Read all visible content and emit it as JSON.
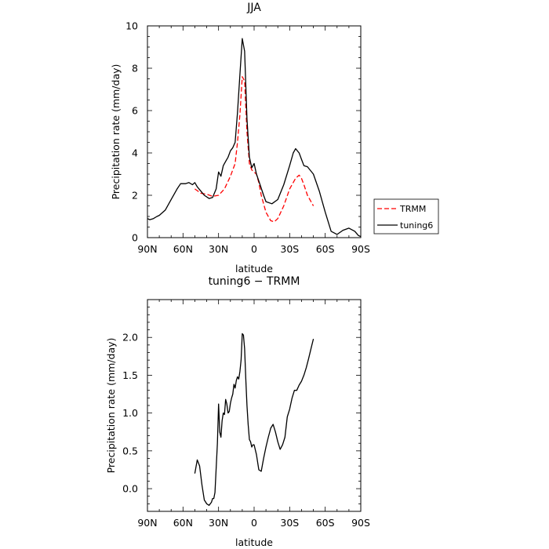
{
  "chart_data": [
    {
      "type": "line",
      "title": "JJA",
      "xlabel": "latitude",
      "ylabel": "Precipitation rate  (mm/day)",
      "xlim": [
        90,
        -90
      ],
      "ylim": [
        0,
        10
      ],
      "xticks": [
        90,
        60,
        30,
        0,
        -30,
        -60,
        -90
      ],
      "xtick_labels": [
        "90N",
        "60N",
        "30N",
        "0",
        "30S",
        "60S",
        "90S"
      ],
      "yticks": [
        0,
        2,
        4,
        6,
        8,
        10
      ],
      "ytick_labels": [
        "0",
        "2",
        "4",
        "6",
        "8",
        "10"
      ],
      "legend": {
        "placement": "right-outside"
      },
      "series": [
        {
          "name": "TRMM",
          "color": "#ff0000",
          "dash": "dashed",
          "x": [
            50,
            45,
            40,
            35,
            30,
            25,
            20,
            16,
            14,
            12,
            10,
            8,
            6,
            4,
            2,
            0,
            -2,
            -4,
            -6,
            -10,
            -14,
            -17,
            -20,
            -25,
            -30,
            -35,
            -38,
            -40,
            -42,
            -45,
            -50
          ],
          "y": [
            2.3,
            2.1,
            2.05,
            1.95,
            2.0,
            2.3,
            2.9,
            3.5,
            4.5,
            5.8,
            7.6,
            7.4,
            5.0,
            3.5,
            3.2,
            3.1,
            3.0,
            2.6,
            2.0,
            1.2,
            0.8,
            0.75,
            0.9,
            1.5,
            2.3,
            2.8,
            2.95,
            2.8,
            2.5,
            2.0,
            1.5
          ]
        },
        {
          "name": "tuning6",
          "color": "#000000",
          "dash": "solid",
          "x": [
            90,
            88,
            85,
            82,
            80,
            75,
            70,
            65,
            62,
            58,
            55,
            52,
            50,
            48,
            45,
            42,
            38,
            35,
            32,
            30,
            28,
            26,
            24,
            22,
            20,
            18,
            16,
            14,
            12,
            10,
            8,
            6,
            4,
            2,
            0,
            -2,
            -5,
            -8,
            -10,
            -15,
            -20,
            -25,
            -30,
            -33,
            -35,
            -38,
            -40,
            -42,
            -45,
            -50,
            -55,
            -60,
            -65,
            -70,
            -75,
            -80,
            -85,
            -88,
            -90
          ],
          "y": [
            0.9,
            0.85,
            0.9,
            1.0,
            1.05,
            1.3,
            1.8,
            2.3,
            2.55,
            2.55,
            2.6,
            2.5,
            2.6,
            2.4,
            2.2,
            2.0,
            1.85,
            1.9,
            2.3,
            3.1,
            2.9,
            3.4,
            3.6,
            3.8,
            4.1,
            4.25,
            4.5,
            5.9,
            7.7,
            9.4,
            8.8,
            5.6,
            3.8,
            3.3,
            3.5,
            3.0,
            2.5,
            2.0,
            1.7,
            1.6,
            1.8,
            2.5,
            3.4,
            4.0,
            4.2,
            4.0,
            3.7,
            3.4,
            3.35,
            3.0,
            2.2,
            1.2,
            0.3,
            0.15,
            0.35,
            0.45,
            0.3,
            0.1,
            0.05
          ]
        }
      ]
    },
    {
      "type": "line",
      "title": "tuning6 − TRMM",
      "xlabel": "latitude",
      "ylabel": "Precipitation rate  (mm/day)",
      "xlim": [
        90,
        -90
      ],
      "ylim": [
        -0.3,
        2.5
      ],
      "xticks": [
        90,
        60,
        30,
        0,
        -30,
        -60,
        -90
      ],
      "xtick_labels": [
        "90N",
        "60N",
        "30N",
        "0",
        "30S",
        "60S",
        "90S"
      ],
      "yticks": [
        0.0,
        0.5,
        1.0,
        1.5,
        2.0
      ],
      "ytick_labels": [
        "0.0",
        "0.5",
        "1.0",
        "1.5",
        "2.0"
      ],
      "series": [
        {
          "color": "#000000",
          "dash": "solid",
          "x": [
            50,
            48,
            46,
            44,
            42,
            40,
            38,
            36,
            35,
            34,
            33,
            31,
            30,
            29,
            28,
            27,
            26,
            25,
            24,
            23,
            22,
            21,
            20,
            19,
            18,
            17,
            16,
            15,
            14,
            13,
            12,
            11,
            10,
            9,
            8,
            7,
            6,
            5,
            4,
            3,
            2,
            1,
            0,
            -2,
            -4,
            -6,
            -8,
            -10,
            -12,
            -14,
            -16,
            -18,
            -20,
            -22,
            -24,
            -26,
            -28,
            -30,
            -32,
            -34,
            -36,
            -38,
            -40,
            -42,
            -44,
            -46,
            -48,
            -50
          ],
          "y": [
            0.2,
            0.38,
            0.3,
            0.05,
            -0.15,
            -0.2,
            -0.22,
            -0.18,
            -0.13,
            -0.13,
            -0.05,
            0.6,
            1.12,
            0.75,
            0.68,
            0.9,
            1.0,
            0.98,
            1.18,
            1.12,
            1.0,
            1.02,
            1.13,
            1.2,
            1.25,
            1.38,
            1.33,
            1.43,
            1.48,
            1.45,
            1.55,
            1.7,
            2.05,
            2.03,
            1.85,
            1.45,
            1.1,
            0.85,
            0.65,
            0.62,
            0.55,
            0.58,
            0.58,
            0.45,
            0.25,
            0.23,
            0.4,
            0.55,
            0.68,
            0.8,
            0.85,
            0.75,
            0.62,
            0.52,
            0.58,
            0.68,
            0.95,
            1.05,
            1.2,
            1.3,
            1.3,
            1.37,
            1.42,
            1.5,
            1.6,
            1.72,
            1.85,
            1.98
          ]
        }
      ]
    }
  ]
}
